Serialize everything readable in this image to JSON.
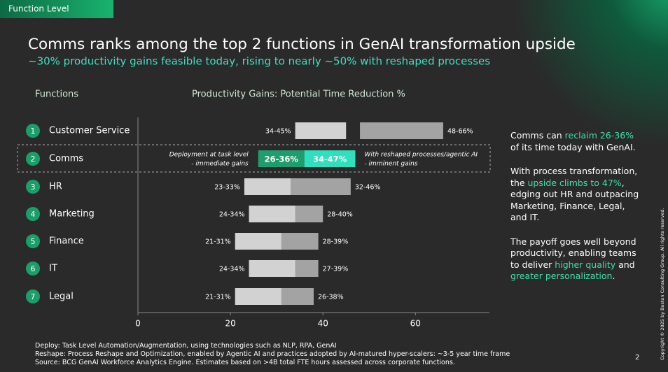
{
  "header": {
    "tab": "Function Level",
    "title": "Comms ranks among the top 2 functions in GenAI transformation upside",
    "subtitle": "~30% productivity gains feasible today, rising to nearly ~50% with reshaped processes"
  },
  "chart_data": {
    "type": "range-bar",
    "categories_title": "Functions",
    "title": "Productivity Gains: Potential Time Reduction %",
    "row_numbers": [
      "1",
      "2",
      "3",
      "4",
      "5",
      "6",
      "7"
    ],
    "categories": [
      "Customer Service",
      "Comms",
      "HR",
      "Marketing",
      "Finance",
      "IT",
      "Legal"
    ],
    "series": [
      {
        "color": "#d2d2d2",
        "highlight_color": "#1e9e6e",
        "low": [
          34,
          26,
          23,
          24,
          21,
          24,
          21
        ],
        "high": [
          45,
          36,
          33,
          34,
          31,
          34,
          31
        ],
        "value_labels": [
          "34-45%",
          "26-36%",
          "23-33%",
          "24-34%",
          "21-31%",
          "24-34%",
          "21-31%"
        ],
        "annotation": [
          "Deployment at task level",
          "- immediate gains"
        ]
      },
      {
        "color": "#a3a3a3",
        "highlight_color": "#2ee0bd",
        "low": [
          48,
          34,
          32,
          28,
          28,
          27,
          26
        ],
        "high": [
          66,
          47,
          46,
          40,
          39,
          39,
          38
        ],
        "value_labels": [
          "48-66%",
          "34-47%",
          "32-46%",
          "28-40%",
          "28-39%",
          "27-39%",
          "26-38%"
        ],
        "annotation": [
          "With reshaped processes/agentic AI",
          "- imminent gains"
        ]
      }
    ],
    "highlight": 1,
    "xlim": [
      0,
      76
    ],
    "xticks": [
      0,
      20,
      40,
      60
    ]
  },
  "sidebar": [
    [
      {
        "text": "Comms can "
      },
      {
        "text": "reclaim 26-36%",
        "accent": true
      },
      {
        "text": " of its time today with GenAI."
      }
    ],
    [
      {
        "text": "With process transformation, the "
      },
      {
        "text": "upside climbs to 47%",
        "accent": true
      },
      {
        "text": ", edging out HR and outpacing Marketing, Finance, Legal, and IT."
      }
    ],
    [
      {
        "text": "The payoff goes well beyond productivity, enabling teams to deliver "
      },
      {
        "text": "higher quality",
        "accent": true
      },
      {
        "text": " and "
      },
      {
        "text": "greater personalization",
        "accent": true
      },
      {
        "text": "."
      }
    ]
  ],
  "footnotes": [
    "Deploy: Task Level Automation/Augmentation, using technologies such as NLP, RPA, GenAI",
    "Reshape: Process Reshape and Optimization, enabled by Agentic AI and practices adopted by AI-matured hyper-scalers: ~3-5 year time frame",
    "Source: BCG GenAI Workforce Analytics Engine. Estimates based on >4B total FTE hours assessed across corporate functions."
  ],
  "page_number": "2",
  "copyright": "Copyright © 2025 by Boston Consulting Group. All rights reserved."
}
